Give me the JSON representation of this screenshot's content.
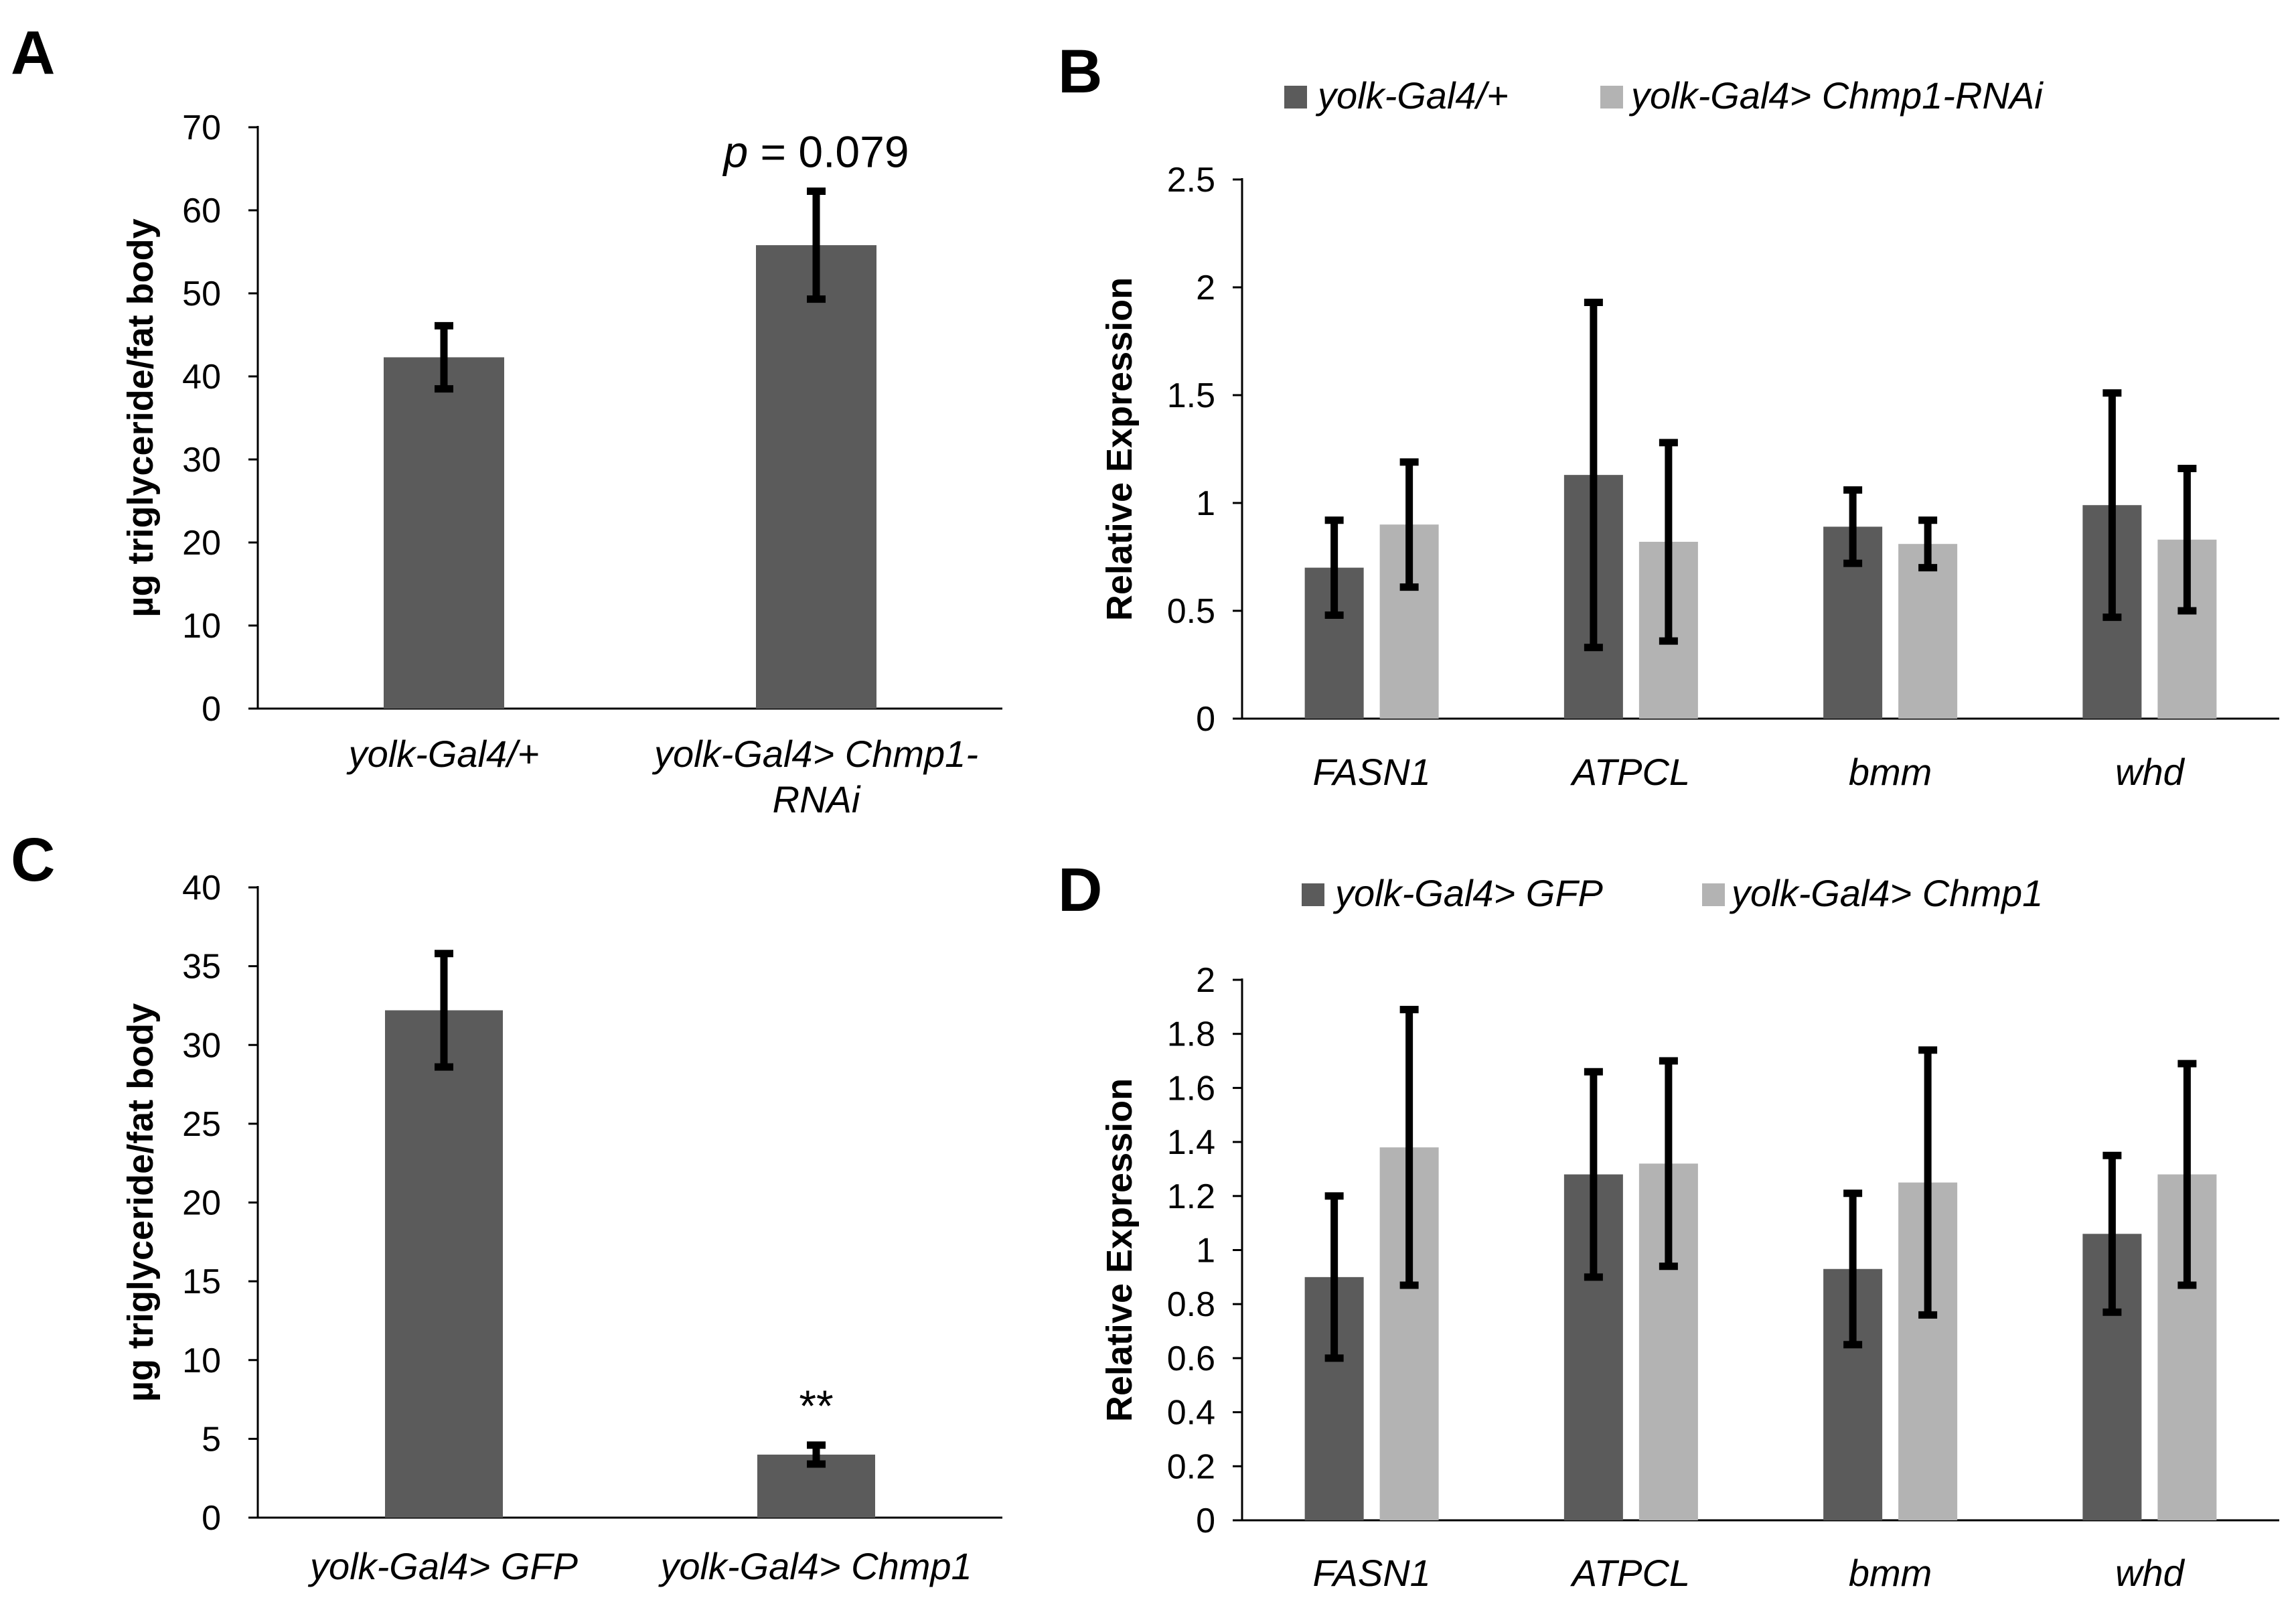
{
  "chart_data": [
    {
      "panel": "A",
      "type": "bar",
      "categories": [
        [
          "yolk-Gal4/+"
        ],
        [
          "yolk-Gal4> Chmp1-",
          "RNAi"
        ]
      ],
      "values": [
        42.3,
        55.8
      ],
      "errors": [
        3.8,
        6.5
      ],
      "ylabel": "µg triglyceride/fat body",
      "ylim": [
        0,
        70
      ],
      "yticks": [
        0,
        10,
        20,
        30,
        40,
        50,
        60,
        70
      ],
      "colors": [
        "#5b5b5b"
      ],
      "annotation": {
        "prefix": "p",
        "text": " = 0.079",
        "category_index": 1
      }
    },
    {
      "panel": "B",
      "type": "bar",
      "categories": [
        "FASN1",
        "ATPCL",
        "bmm",
        "whd"
      ],
      "series": [
        {
          "name": "yolk-Gal4/+",
          "color": "#5b5b5b",
          "values": [
            0.7,
            1.13,
            0.89,
            0.99
          ],
          "errors": [
            0.22,
            0.8,
            0.17,
            0.52
          ]
        },
        {
          "name": "yolk-Gal4> Chmp1-RNAi",
          "color": "#b3b3b3",
          "values": [
            0.9,
            0.82,
            0.81,
            0.83
          ],
          "errors": [
            0.29,
            0.46,
            0.11,
            0.33
          ]
        }
      ],
      "ylabel": "Relative Expression",
      "ylim": [
        0,
        2.5
      ],
      "yticks": [
        0,
        0.5,
        1,
        1.5,
        2,
        2.5
      ],
      "ytick_labels": [
        "0",
        "0.5",
        "1",
        "1.5",
        "2",
        "2.5"
      ]
    },
    {
      "panel": "C",
      "type": "bar",
      "categories": [
        [
          "yolk-Gal4> GFP"
        ],
        [
          "yolk-Gal4> Chmp1"
        ]
      ],
      "values": [
        32.2,
        4.0
      ],
      "errors": [
        3.6,
        0.6
      ],
      "ylabel": "µg triglyceride/fat body",
      "ylim": [
        0,
        40
      ],
      "yticks": [
        0,
        5,
        10,
        15,
        20,
        25,
        30,
        35,
        40
      ],
      "colors": [
        "#5b5b5b"
      ],
      "annotation": {
        "prefix": "",
        "text": "**",
        "category_index": 1
      }
    },
    {
      "panel": "D",
      "type": "bar",
      "categories": [
        "FASN1",
        "ATPCL",
        "bmm",
        "whd"
      ],
      "series": [
        {
          "name": "yolk-Gal4> GFP",
          "color": "#5b5b5b",
          "values": [
            0.9,
            1.28,
            0.93,
            1.06
          ],
          "errors": [
            0.3,
            0.38,
            0.28,
            0.29
          ]
        },
        {
          "name": "yolk-Gal4> Chmp1",
          "color": "#b3b3b3",
          "values": [
            1.38,
            1.32,
            1.25,
            1.28
          ],
          "errors": [
            0.51,
            0.38,
            0.49,
            0.41
          ]
        }
      ],
      "ylabel": "Relative Expression",
      "ylim": [
        0,
        2
      ],
      "yticks": [
        0,
        0.2,
        0.4,
        0.6,
        0.8,
        1,
        1.2,
        1.4,
        1.6,
        1.8,
        2
      ],
      "ytick_labels": [
        "0",
        "0.2",
        "0.4",
        "0.6",
        "0.8",
        "1",
        "1.2",
        "1.4",
        "1.6",
        "1.8",
        "2"
      ]
    }
  ]
}
